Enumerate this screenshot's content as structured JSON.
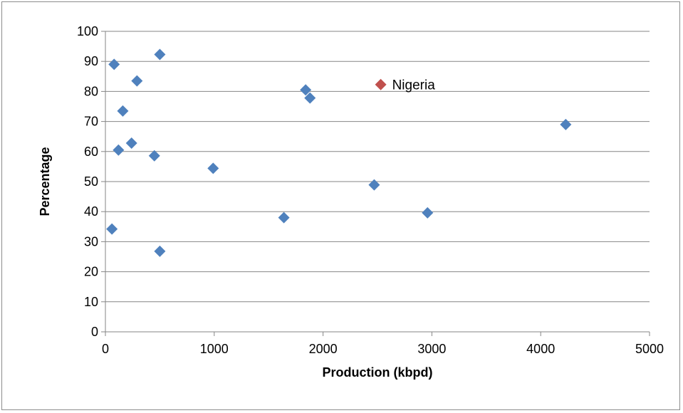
{
  "chart_data": {
    "type": "scatter",
    "title": "",
    "xlabel": "Production (kbpd)",
    "ylabel": "Percentage",
    "xlim": [
      0,
      5000
    ],
    "ylim": [
      0,
      100
    ],
    "x_ticks": [
      0,
      1000,
      2000,
      3000,
      4000,
      5000
    ],
    "y_ticks": [
      0,
      10,
      20,
      30,
      40,
      50,
      60,
      70,
      80,
      90,
      100
    ],
    "grid": "horizontal",
    "legend": "none",
    "colors": {
      "points": "#4F81BD",
      "highlight": "#C0504D",
      "grid": "#868686"
    },
    "series": [
      {
        "points": [
          {
            "x": 80,
            "y": 89
          },
          {
            "x": 500,
            "y": 92.3
          },
          {
            "x": 290,
            "y": 83.5
          },
          {
            "x": 160,
            "y": 73.5
          },
          {
            "x": 240,
            "y": 62.8
          },
          {
            "x": 120,
            "y": 60.5
          },
          {
            "x": 450,
            "y": 58.6
          },
          {
            "x": 990,
            "y": 54.4
          },
          {
            "x": 60,
            "y": 34.2
          },
          {
            "x": 500,
            "y": 26.8
          },
          {
            "x": 1640,
            "y": 38
          },
          {
            "x": 1840,
            "y": 80.5
          },
          {
            "x": 1880,
            "y": 77.8
          },
          {
            "x": 2470,
            "y": 48.9
          },
          {
            "x": 2960,
            "y": 39.6
          },
          {
            "x": 4230,
            "y": 69
          }
        ]
      },
      {
        "points": [
          {
            "x": 2530,
            "y": 82.3,
            "label": "Nigeria"
          }
        ]
      }
    ]
  }
}
